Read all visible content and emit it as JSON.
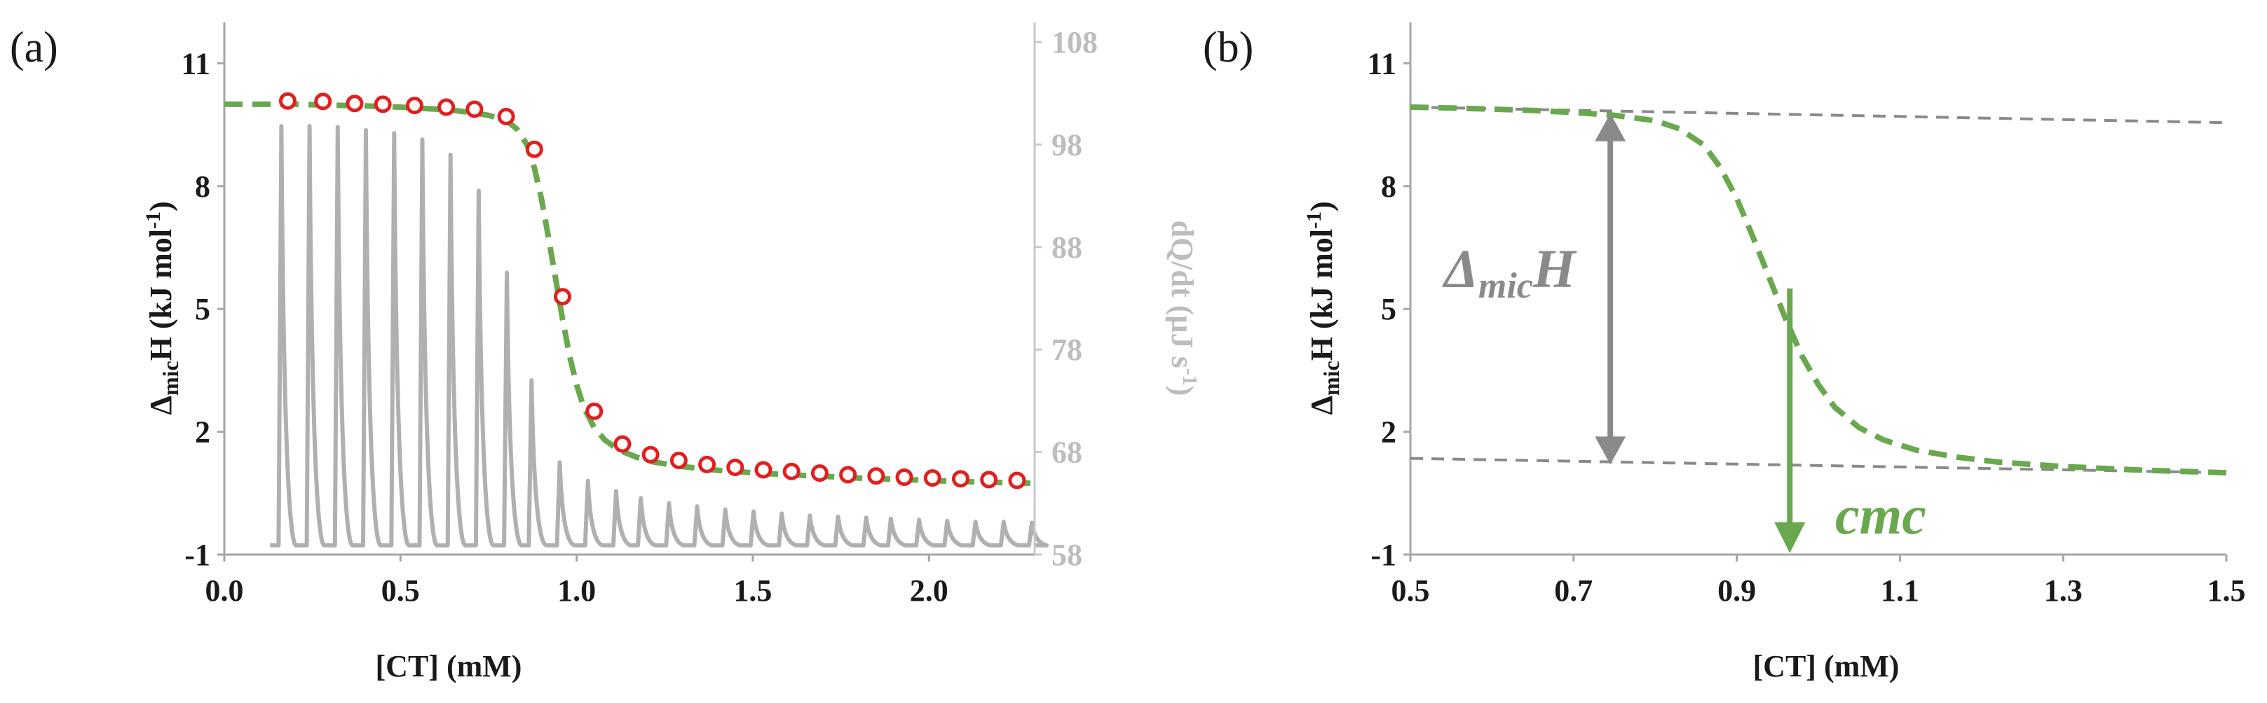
{
  "chart_data": [
    {
      "panel_label": "(a)",
      "type": "line",
      "xlabel": "[CT] (mM)",
      "ylabel_main": "Δ",
      "ylabel_sub": "mic",
      "ylabel_rest": "H (kJ mol",
      "ylabel_sup": "-1",
      "ylabel_end": ")",
      "y2label": "dQ/dt (µJ s",
      "y2label_sup": "-1",
      "y2label_end": ")",
      "xlim": [
        0,
        2.3
      ],
      "ylim": [
        -1,
        12
      ],
      "y2lim": [
        58,
        108
      ],
      "xticks": [
        0.0,
        0.5,
        1.0,
        1.5,
        2.0
      ],
      "xtick_labels": [
        "0.0",
        "0.5",
        "1.0",
        "1.5",
        "2.0"
      ],
      "yticks": [
        -1,
        2,
        5,
        8,
        11
      ],
      "ytick_labels": [
        "-1",
        "2",
        "5",
        "8",
        "11"
      ],
      "y2ticks": [
        58,
        68,
        78,
        88,
        98,
        108
      ],
      "y2tick_labels": [
        "58",
        "68",
        "78",
        "88",
        "98",
        "108"
      ],
      "series": [
        {
          "name": "fit",
          "style": "dashed",
          "color": "#6aa84f",
          "x": [
            0.0,
            0.1,
            0.2,
            0.3,
            0.4,
            0.5,
            0.6,
            0.65,
            0.7,
            0.75,
            0.8,
            0.83,
            0.86,
            0.88,
            0.9,
            0.92,
            0.94,
            0.96,
            0.98,
            1.0,
            1.02,
            1.05,
            1.08,
            1.12,
            1.17,
            1.22,
            1.3,
            1.4,
            1.5,
            1.6,
            1.7,
            1.8,
            1.9,
            2.0,
            2.1,
            2.2,
            2.3
          ],
          "y": [
            10.0,
            10.0,
            10.0,
            9.98,
            9.96,
            9.93,
            9.88,
            9.85,
            9.8,
            9.73,
            9.6,
            9.4,
            9.0,
            8.45,
            7.7,
            6.75,
            5.75,
            4.75,
            3.85,
            3.15,
            2.6,
            2.1,
            1.8,
            1.55,
            1.38,
            1.26,
            1.15,
            1.06,
            1.0,
            0.95,
            0.91,
            0.87,
            0.84,
            0.81,
            0.78,
            0.76,
            0.74
          ]
        },
        {
          "name": "data",
          "style": "markers",
          "color": "#e02020",
          "x": [
            0.18,
            0.28,
            0.37,
            0.45,
            0.54,
            0.63,
            0.71,
            0.8,
            0.88,
            0.96,
            1.05,
            1.13,
            1.21,
            1.29,
            1.37,
            1.45,
            1.53,
            1.61,
            1.69,
            1.77,
            1.85,
            1.93,
            2.01,
            2.09,
            2.17,
            2.25
          ],
          "y": [
            10.08,
            10.07,
            10.02,
            10.0,
            9.97,
            9.93,
            9.88,
            9.7,
            8.9,
            5.3,
            2.5,
            1.7,
            1.44,
            1.3,
            1.2,
            1.13,
            1.07,
            1.03,
            0.99,
            0.95,
            0.92,
            0.89,
            0.87,
            0.85,
            0.83,
            0.81
          ]
        },
        {
          "name": "thermogram peaks",
          "style": "spikes",
          "color": "#b0b0b0",
          "axis": "y2",
          "baseline": 58.9,
          "peak_x": [
            0.16,
            0.24,
            0.32,
            0.4,
            0.48,
            0.56,
            0.64,
            0.72,
            0.8,
            0.87,
            0.95,
            1.03,
            1.11,
            1.18,
            1.26,
            1.34,
            1.42,
            1.5,
            1.58,
            1.66,
            1.74,
            1.82,
            1.89,
            1.97,
            2.05,
            2.13,
            2.21,
            2.29
          ],
          "peak_y": [
            99.8,
            99.8,
            99.7,
            99.4,
            99.1,
            98.5,
            97.0,
            93.5,
            85.5,
            75.0,
            67.0,
            65.2,
            64.2,
            63.5,
            63.0,
            62.7,
            62.4,
            62.2,
            62.0,
            61.8,
            61.7,
            61.6,
            61.5,
            61.4,
            61.3,
            61.2,
            61.2,
            61.1
          ]
        }
      ]
    },
    {
      "panel_label": "(b)",
      "type": "line",
      "xlabel": "[CT] (mM)",
      "ylabel_main": "Δ",
      "ylabel_sub": "mic",
      "ylabel_rest": "H (kJ mol",
      "ylabel_sup": "-1",
      "ylabel_end": ")",
      "xlim": [
        0.5,
        1.5
      ],
      "ylim": [
        -1,
        12
      ],
      "xticks": [
        0.5,
        0.7,
        0.9,
        1.1,
        1.3,
        1.5
      ],
      "xtick_labels": [
        "0.5",
        "0.7",
        "0.9",
        "1.1",
        "1.3",
        "1.5"
      ],
      "yticks": [
        -1,
        2,
        5,
        8,
        11
      ],
      "ytick_labels": [
        "-1",
        "2",
        "5",
        "8",
        "11"
      ],
      "series": [
        {
          "name": "fit",
          "style": "dashed",
          "color": "#6aa84f",
          "x": [
            0.5,
            0.55,
            0.6,
            0.65,
            0.7,
            0.75,
            0.8,
            0.83,
            0.86,
            0.88,
            0.9,
            0.92,
            0.94,
            0.96,
            0.98,
            1.0,
            1.02,
            1.05,
            1.08,
            1.12,
            1.17,
            1.22,
            1.3,
            1.4,
            1.5
          ],
          "y": [
            9.93,
            9.91,
            9.88,
            9.85,
            9.8,
            9.73,
            9.6,
            9.4,
            9.0,
            8.45,
            7.7,
            6.75,
            5.75,
            4.75,
            3.85,
            3.15,
            2.6,
            2.1,
            1.8,
            1.55,
            1.38,
            1.26,
            1.15,
            1.06,
            1.0
          ]
        },
        {
          "name": "upper baseline",
          "style": "dashed-thin",
          "color": "#8a8a8a",
          "x": [
            0.5,
            1.5
          ],
          "y": [
            9.93,
            9.55
          ]
        },
        {
          "name": "lower baseline",
          "style": "dashed-thin",
          "color": "#8a8a8a",
          "x": [
            0.5,
            1.5
          ],
          "y": [
            1.35,
            1.0
          ]
        }
      ],
      "annotations": {
        "enthalpy_text_main": "Δ",
        "enthalpy_text_sub": "mic",
        "enthalpy_text_end": "H",
        "enthalpy_arrow_x": 0.745,
        "enthalpy_arrow_top": 9.78,
        "enthalpy_arrow_bottom": 1.2,
        "cmc_text": "cmc",
        "cmc_x": 0.965,
        "cmc_arrow_top": 5.5,
        "cmc_arrow_bottom": -1,
        "grey_color": "#8a8a8a",
        "green_color": "#6aa84f"
      }
    }
  ]
}
